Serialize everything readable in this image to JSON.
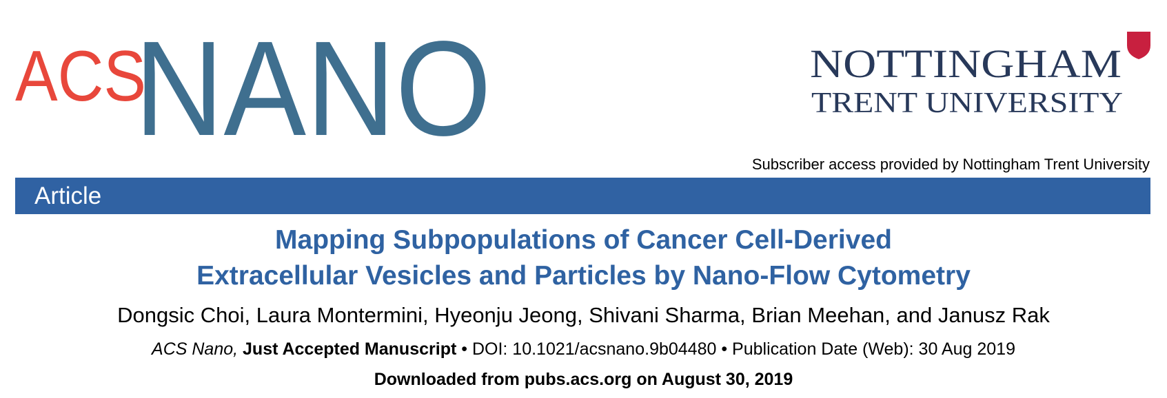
{
  "header": {
    "journal_logo": {
      "prefix": "ACS",
      "name": "NANO"
    },
    "institution_logo": {
      "line1": "NOTTINGHAM",
      "line2": "TRENT UNIVERSITY"
    },
    "access_note": "Subscriber access provided by Nottingham Trent University"
  },
  "section_bar": "Article",
  "article": {
    "title_lines": [
      "Mapping Subpopulations of Cancer Cell-Derived",
      "Extracellular Vesicles and Particles by Nano-Flow Cytometry"
    ],
    "authors": "Dongsic Choi, Laura Montermini, Hyeonju Jeong, Shivani Sharma, Brian Meehan, and Janusz Rak",
    "citation": {
      "journal": "ACS Nano,",
      "status": "Just Accepted Manuscript",
      "doi": "• DOI: 10.1021/acsnano.9b04480",
      "date": "• Publication Date (Web): 30 Aug 2019"
    },
    "downloaded": "Downloaded from pubs.acs.org on August 30, 2019"
  }
}
